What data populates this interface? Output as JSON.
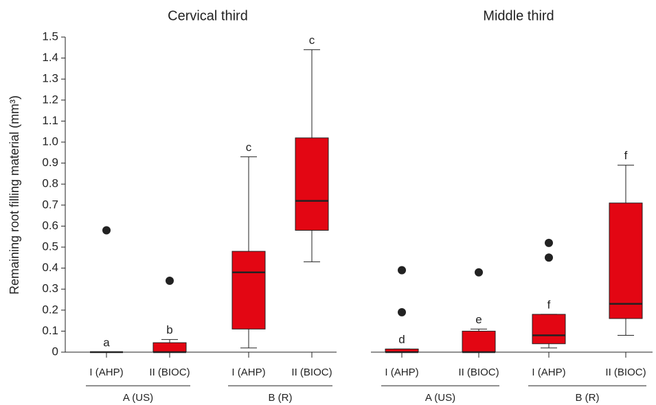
{
  "chart_data": [
    {
      "type": "box",
      "title": "Cervical third",
      "y_label": "Remaining root filling material (mm³)",
      "categories": [
        "I (AHP)",
        "II (BIOC)",
        "I (AHP)",
        "II (BIOC)"
      ],
      "groups": [
        "A (US)",
        "B (R)"
      ],
      "color": "#e30613",
      "ylim": [
        0,
        1.5
      ],
      "yticks": [
        0,
        0.1,
        0.2,
        0.3,
        0.4,
        0.5,
        0.6,
        0.7,
        0.8,
        0.9,
        {
          "value": 1,
          "label": "1.0"
        },
        1.1,
        1.2,
        1.3,
        1.4,
        1.5
      ],
      "boxes": [
        {
          "min": 0,
          "q1": 0,
          "median": 0,
          "q3": 0,
          "max": 0,
          "outliers": [
            0.58
          ],
          "letter": "a"
        },
        {
          "min": 0,
          "q1": 0,
          "median": 0,
          "q3": 0.045,
          "max": 0.06,
          "outliers": [
            0.34
          ],
          "letter": "b"
        },
        {
          "min": 0.02,
          "q1": 0.11,
          "median": 0.38,
          "q3": 0.48,
          "max": 0.93,
          "outliers": [],
          "letter": "c"
        },
        {
          "min": 0.43,
          "q1": 0.58,
          "median": 0.72,
          "q3": 1.02,
          "max": 1.44,
          "outliers": [],
          "letter": "c"
        }
      ]
    },
    {
      "type": "box",
      "title": "Middle third",
      "categories": [
        "I (AHP)",
        "II (BIOC)",
        "I (AHP)",
        "II (BIOC)"
      ],
      "groups": [
        "A (US)",
        "B (R)"
      ],
      "color": "#e30613",
      "ylim": [
        0,
        1.5
      ],
      "boxes": [
        {
          "min": 0,
          "q1": 0,
          "median": 0,
          "q3": 0.015,
          "max": 0.015,
          "outliers": [
            0.39,
            0.19
          ],
          "letter": "d"
        },
        {
          "min": 0,
          "q1": 0,
          "median": 0,
          "q3": 0.1,
          "max": 0.11,
          "outliers": [
            0.38
          ],
          "letter": "e"
        },
        {
          "min": 0.02,
          "q1": 0.04,
          "median": 0.08,
          "q3": 0.18,
          "max": 0.18,
          "outliers": [
            0.52,
            0.45
          ],
          "letter": "f"
        },
        {
          "min": 0.08,
          "q1": 0.16,
          "median": 0.23,
          "q3": 0.71,
          "max": 0.89,
          "outliers": [],
          "letter": "f"
        }
      ]
    }
  ]
}
